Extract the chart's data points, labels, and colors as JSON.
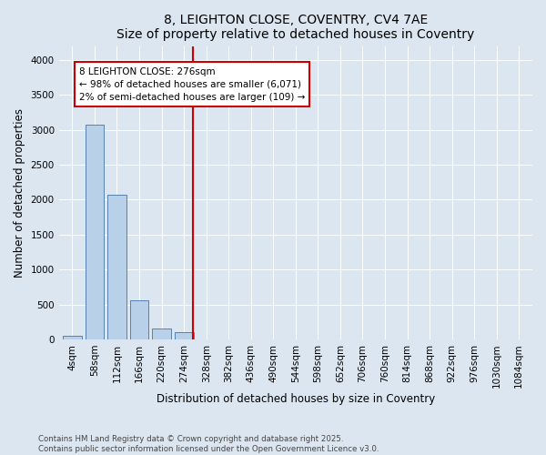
{
  "title": "8, LEIGHTON CLOSE, COVENTRY, CV4 7AE",
  "subtitle": "Size of property relative to detached houses in Coventry",
  "xlabel": "Distribution of detached houses by size in Coventry",
  "ylabel": "Number of detached properties",
  "bar_labels": [
    "4sqm",
    "58sqm",
    "112sqm",
    "166sqm",
    "220sqm",
    "274sqm",
    "328sqm",
    "382sqm",
    "436sqm",
    "490sqm",
    "544sqm",
    "598sqm",
    "652sqm",
    "706sqm",
    "760sqm",
    "814sqm",
    "868sqm",
    "922sqm",
    "976sqm",
    "1030sqm",
    "1084sqm"
  ],
  "bar_values": [
    50,
    3080,
    2070,
    560,
    160,
    100,
    5,
    5,
    5,
    5,
    0,
    0,
    0,
    0,
    0,
    0,
    0,
    0,
    0,
    0,
    0
  ],
  "bar_color": "#b8d0e8",
  "bar_edgecolor": "#4472a8",
  "annotation_line_label": "8 LEIGHTON CLOSE: 276sqm",
  "annotation_text1": "← 98% of detached houses are smaller (6,071)",
  "annotation_text2": "2% of semi-detached houses are larger (109) →",
  "annotation_box_color": "#ffffff",
  "annotation_box_edgecolor": "#cc0000",
  "vline_color": "#cc0000",
  "vline_x_index": 5.42,
  "ylim": [
    0,
    4200
  ],
  "yticks": [
    0,
    500,
    1000,
    1500,
    2000,
    2500,
    3000,
    3500,
    4000
  ],
  "bg_color": "#dce6f1",
  "plot_bg_color": "#dce6f1",
  "footer_text": "Contains HM Land Registry data © Crown copyright and database right 2025.\nContains public sector information licensed under the Open Government Licence v3.0.",
  "title_fontsize": 10,
  "xlabel_fontsize": 8.5,
  "ylabel_fontsize": 8.5,
  "tick_fontsize": 7.5,
  "ann_fontsize": 7.5
}
